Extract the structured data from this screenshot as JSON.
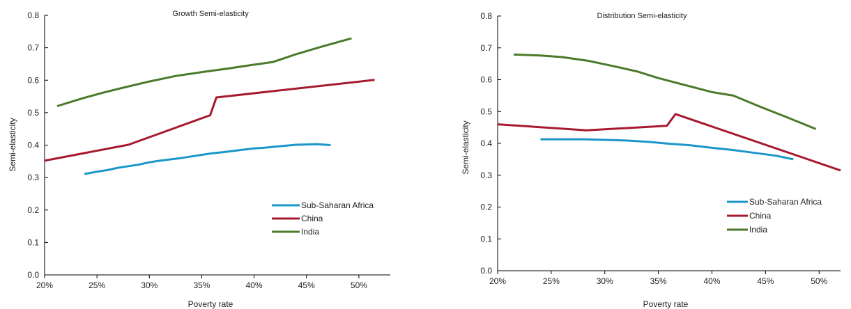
{
  "colors": {
    "sub_saharan_africa": "#1a96c8",
    "china": "#a6192e",
    "india": "#4a7a2a",
    "axis": "#000000"
  },
  "chart_data": [
    {
      "type": "line",
      "title": "Growth Semi-elasticity",
      "xlabel": "Poverty rate",
      "ylabel": "Semi-elasticity",
      "xlim": [
        20,
        53
      ],
      "ylim": [
        0,
        0.8
      ],
      "x_ticks": [
        "20%",
        "25%",
        "30%",
        "35%",
        "40%",
        "45%",
        "50%"
      ],
      "y_ticks": [
        "0.0",
        "0.1",
        "0.2",
        "0.3",
        "0.4",
        "0.5",
        "0.6",
        "0.7",
        "0.8"
      ],
      "legend_position": "lower-right",
      "series": [
        {
          "name": "Sub-Saharan Africa",
          "color_key": "sub_saharan_africa",
          "x": [
            23.8,
            25,
            26,
            27,
            28,
            29,
            30,
            31,
            32,
            33,
            34,
            35,
            36,
            37,
            38,
            39,
            40,
            41,
            42,
            43,
            44,
            45,
            46,
            47.3
          ],
          "y": [
            0.311,
            0.318,
            0.323,
            0.33,
            0.335,
            0.34,
            0.347,
            0.352,
            0.356,
            0.36,
            0.365,
            0.37,
            0.375,
            0.378,
            0.382,
            0.386,
            0.39,
            0.392,
            0.395,
            0.398,
            0.401,
            0.402,
            0.403,
            0.4
          ]
        },
        {
          "name": "China",
          "color_key": "china",
          "x": [
            20,
            28,
            35.8,
            36.4,
            51.5
          ],
          "y": [
            0.352,
            0.401,
            0.492,
            0.547,
            0.601
          ]
        },
        {
          "name": "India",
          "color_key": "india",
          "x": [
            21.2,
            23.5,
            25.5,
            27.5,
            30,
            32.5,
            35,
            37.5,
            40,
            41.8,
            44,
            46.5,
            49.3
          ],
          "y": [
            0.52,
            0.543,
            0.561,
            0.577,
            0.596,
            0.613,
            0.625,
            0.636,
            0.648,
            0.656,
            0.68,
            0.704,
            0.729
          ]
        }
      ]
    },
    {
      "type": "line",
      "title": "Distribution Semi-elasticity",
      "xlabel": "Poverty rate",
      "ylabel": "Semi-elasticity",
      "xlim": [
        20,
        52
      ],
      "ylim": [
        0,
        0.8
      ],
      "x_ticks": [
        "20%",
        "25%",
        "30%",
        "35%",
        "40%",
        "45%",
        "50%"
      ],
      "y_ticks": [
        "0.0",
        "0.1",
        "0.2",
        "0.3",
        "0.4",
        "0.5",
        "0.6",
        "0.7",
        "0.8"
      ],
      "legend_position": "lower-right",
      "series": [
        {
          "name": "Sub-Saharan Africa",
          "color_key": "sub_saharan_africa",
          "x": [
            24,
            26,
            28,
            30,
            32,
            34,
            36,
            38,
            40,
            42,
            44,
            46,
            47.6
          ],
          "y": [
            0.413,
            0.413,
            0.413,
            0.411,
            0.409,
            0.405,
            0.399,
            0.394,
            0.386,
            0.379,
            0.37,
            0.361,
            0.35
          ]
        },
        {
          "name": "China",
          "color_key": "china",
          "x": [
            20,
            28.3,
            35.8,
            36.6,
            52
          ],
          "y": [
            0.46,
            0.441,
            0.455,
            0.492,
            0.315
          ]
        },
        {
          "name": "India",
          "color_key": "india",
          "x": [
            21.5,
            24,
            26,
            28.5,
            31,
            33,
            35,
            37.5,
            40,
            42,
            44.5,
            47,
            49.7
          ],
          "y": [
            0.679,
            0.676,
            0.671,
            0.659,
            0.641,
            0.626,
            0.605,
            0.583,
            0.561,
            0.55,
            0.515,
            0.482,
            0.445
          ]
        }
      ]
    }
  ]
}
